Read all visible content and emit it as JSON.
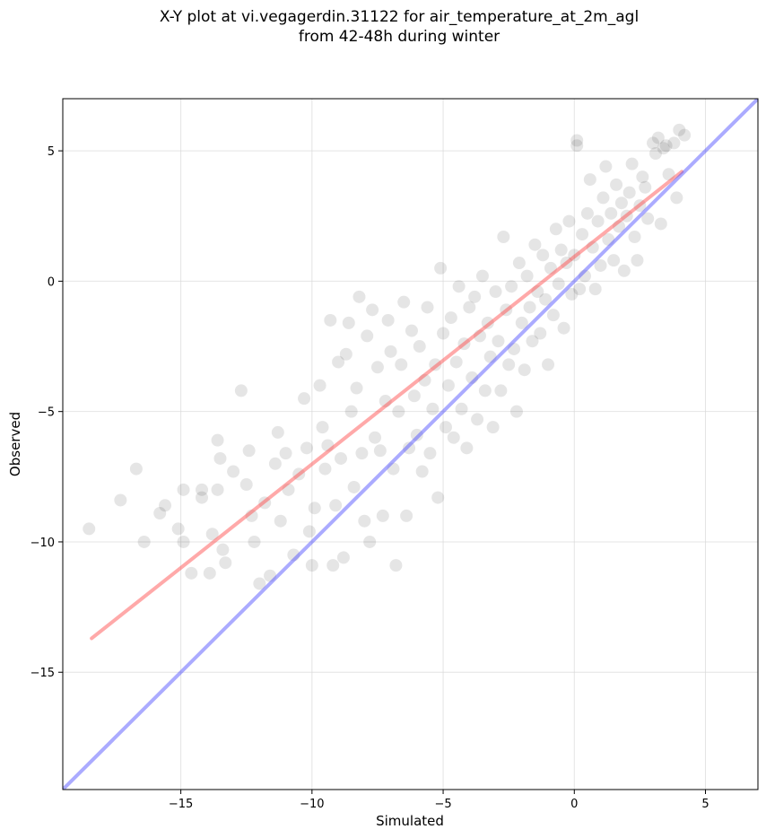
{
  "chart_data": {
    "type": "scatter",
    "title_line1": "X-Y plot at vi.vegagerdin.31122 for air_temperature_at_2m_agl",
    "title_line2": "from 42-48h during winter",
    "xlabel": "Simulated",
    "ylabel": "Observed",
    "xlim": [
      -19.5,
      7.0
    ],
    "ylim": [
      -19.5,
      7.0
    ],
    "xticks": [
      -15,
      -10,
      -5,
      0,
      5
    ],
    "yticks": [
      -15,
      -10,
      -5,
      0,
      5
    ],
    "xtick_labels": [
      "−15",
      "−10",
      "−5",
      "0",
      "5"
    ],
    "ytick_labels": [
      "−15",
      "−10",
      "−5",
      "0",
      "5"
    ],
    "grid": true,
    "point_color": "#000000",
    "series": [
      {
        "kind": "regression-line",
        "color": "#ff4040",
        "points": [
          [
            -18.4,
            -13.7
          ],
          [
            4.1,
            4.2
          ]
        ]
      },
      {
        "kind": "one-to-one-line",
        "color": "#4444ff",
        "points": [
          [
            -19.5,
            -19.5
          ],
          [
            7.0,
            7.0
          ]
        ]
      }
    ],
    "points_sample": [
      [
        -18.5,
        -9.5
      ],
      [
        -17.3,
        -8.4
      ],
      [
        -16.7,
        -7.2
      ],
      [
        -16.4,
        -10.0
      ],
      [
        -15.8,
        -8.9
      ],
      [
        -15.6,
        -8.6
      ],
      [
        -15.1,
        -9.5
      ],
      [
        -14.9,
        -8.0
      ],
      [
        -14.9,
        -10.0
      ],
      [
        -14.6,
        -11.2
      ],
      [
        -14.2,
        -8.0
      ],
      [
        -14.2,
        -8.3
      ],
      [
        -13.9,
        -11.2
      ],
      [
        -13.8,
        -9.7
      ],
      [
        -13.6,
        -8.0
      ],
      [
        -13.6,
        -6.1
      ],
      [
        -13.5,
        -6.8
      ],
      [
        -13.4,
        -10.3
      ],
      [
        -13.3,
        -10.8
      ],
      [
        -13.0,
        -7.3
      ],
      [
        -12.7,
        -4.2
      ],
      [
        -12.5,
        -7.8
      ],
      [
        -12.4,
        -6.5
      ],
      [
        -12.3,
        -9.0
      ],
      [
        -12.2,
        -10.0
      ],
      [
        -12.0,
        -11.6
      ],
      [
        -11.8,
        -8.5
      ],
      [
        -11.6,
        -11.3
      ],
      [
        -11.4,
        -7.0
      ],
      [
        -11.3,
        -5.8
      ],
      [
        -11.2,
        -9.2
      ],
      [
        -11.0,
        -6.6
      ],
      [
        -10.9,
        -8.0
      ],
      [
        -10.7,
        -10.5
      ],
      [
        -10.5,
        -7.4
      ],
      [
        -10.3,
        -4.5
      ],
      [
        -10.2,
        -6.4
      ],
      [
        -10.1,
        -9.6
      ],
      [
        -10.0,
        -10.9
      ],
      [
        -9.9,
        -8.7
      ],
      [
        -9.7,
        -4.0
      ],
      [
        -9.6,
        -5.6
      ],
      [
        -9.5,
        -7.2
      ],
      [
        -9.4,
        -6.3
      ],
      [
        -9.3,
        -1.5
      ],
      [
        -9.2,
        -10.9
      ],
      [
        -9.1,
        -8.6
      ],
      [
        -9.0,
        -3.1
      ],
      [
        -8.9,
        -6.8
      ],
      [
        -8.8,
        -10.6
      ],
      [
        -8.7,
        -2.8
      ],
      [
        -8.6,
        -1.6
      ],
      [
        -8.5,
        -5.0
      ],
      [
        -8.4,
        -7.9
      ],
      [
        -8.3,
        -4.1
      ],
      [
        -8.2,
        -0.6
      ],
      [
        -8.1,
        -6.6
      ],
      [
        -8.0,
        -9.2
      ],
      [
        -7.9,
        -2.1
      ],
      [
        -7.8,
        -10.0
      ],
      [
        -7.7,
        -1.1
      ],
      [
        -7.6,
        -6.0
      ],
      [
        -7.5,
        -3.3
      ],
      [
        -7.4,
        -6.5
      ],
      [
        -7.3,
        -9.0
      ],
      [
        -7.2,
        -4.6
      ],
      [
        -7.1,
        -1.5
      ],
      [
        -7.0,
        -2.7
      ],
      [
        -6.9,
        -7.2
      ],
      [
        -6.8,
        -10.9
      ],
      [
        -6.7,
        -5.0
      ],
      [
        -6.6,
        -3.2
      ],
      [
        -6.5,
        -0.8
      ],
      [
        -6.4,
        -9.0
      ],
      [
        -6.3,
        -6.4
      ],
      [
        -6.2,
        -1.9
      ],
      [
        -6.1,
        -4.4
      ],
      [
        -6.0,
        -5.9
      ],
      [
        -5.9,
        -2.5
      ],
      [
        -5.8,
        -7.3
      ],
      [
        -5.7,
        -3.8
      ],
      [
        -5.6,
        -1.0
      ],
      [
        -5.5,
        -6.6
      ],
      [
        -5.4,
        -4.9
      ],
      [
        -5.3,
        -3.2
      ],
      [
        -5.2,
        -8.3
      ],
      [
        -5.1,
        0.5
      ],
      [
        -5.0,
        -2.0
      ],
      [
        -4.9,
        -5.6
      ],
      [
        -4.8,
        -4.0
      ],
      [
        -4.7,
        -1.4
      ],
      [
        -4.6,
        -6.0
      ],
      [
        -4.5,
        -3.1
      ],
      [
        -4.4,
        -0.2
      ],
      [
        -4.3,
        -4.9
      ],
      [
        -4.2,
        -2.4
      ],
      [
        -4.1,
        -6.4
      ],
      [
        -4.0,
        -1.0
      ],
      [
        -3.9,
        -3.7
      ],
      [
        -3.8,
        -0.6
      ],
      [
        -3.7,
        -5.3
      ],
      [
        -3.6,
        -2.1
      ],
      [
        -3.5,
        0.2
      ],
      [
        -3.4,
        -4.2
      ],
      [
        -3.3,
        -1.6
      ],
      [
        -3.2,
        -2.9
      ],
      [
        -3.1,
        -5.6
      ],
      [
        -3.0,
        -0.4
      ],
      [
        -2.9,
        -2.3
      ],
      [
        -2.8,
        -4.2
      ],
      [
        -2.7,
        1.7
      ],
      [
        -2.6,
        -1.1
      ],
      [
        -2.5,
        -3.2
      ],
      [
        -2.4,
        -0.2
      ],
      [
        -2.3,
        -2.6
      ],
      [
        -2.2,
        -5.0
      ],
      [
        -2.1,
        0.7
      ],
      [
        -2.0,
        -1.6
      ],
      [
        -1.9,
        -3.4
      ],
      [
        -1.8,
        0.2
      ],
      [
        -1.7,
        -1.0
      ],
      [
        -1.6,
        -2.3
      ],
      [
        -1.5,
        1.4
      ],
      [
        -1.4,
        -0.4
      ],
      [
        -1.3,
        -2.0
      ],
      [
        -1.2,
        1.0
      ],
      [
        -1.1,
        -0.7
      ],
      [
        -1.0,
        -3.2
      ],
      [
        -0.9,
        0.5
      ],
      [
        -0.8,
        -1.3
      ],
      [
        -0.7,
        2.0
      ],
      [
        -0.6,
        -0.1
      ],
      [
        -0.5,
        1.2
      ],
      [
        -0.4,
        -1.8
      ],
      [
        -0.3,
        0.7
      ],
      [
        -0.2,
        2.3
      ],
      [
        -0.1,
        -0.5
      ],
      [
        0.0,
        1.0
      ],
      [
        0.1,
        5.4
      ],
      [
        0.1,
        5.2
      ],
      [
        0.2,
        -0.3
      ],
      [
        0.3,
        1.8
      ],
      [
        0.4,
        0.2
      ],
      [
        0.5,
        2.6
      ],
      [
        0.6,
        3.9
      ],
      [
        0.7,
        1.3
      ],
      [
        0.8,
        -0.3
      ],
      [
        0.9,
        2.3
      ],
      [
        1.0,
        0.6
      ],
      [
        1.1,
        3.2
      ],
      [
        1.2,
        4.4
      ],
      [
        1.3,
        1.6
      ],
      [
        1.4,
        2.6
      ],
      [
        1.5,
        0.8
      ],
      [
        1.6,
        3.7
      ],
      [
        1.7,
        2.1
      ],
      [
        1.8,
        3.0
      ],
      [
        1.9,
        0.4
      ],
      [
        2.0,
        2.5
      ],
      [
        2.1,
        3.4
      ],
      [
        2.2,
        4.5
      ],
      [
        2.3,
        1.7
      ],
      [
        2.4,
        0.8
      ],
      [
        2.5,
        2.9
      ],
      [
        2.6,
        4.0
      ],
      [
        2.7,
        3.6
      ],
      [
        2.8,
        2.4
      ],
      [
        3.0,
        5.3
      ],
      [
        3.1,
        4.9
      ],
      [
        3.2,
        5.5
      ],
      [
        3.3,
        2.2
      ],
      [
        3.4,
        5.1
      ],
      [
        3.5,
        5.2
      ],
      [
        3.6,
        4.1
      ],
      [
        3.8,
        5.3
      ],
      [
        3.9,
        3.2
      ],
      [
        4.0,
        5.8
      ],
      [
        4.2,
        5.6
      ]
    ]
  }
}
